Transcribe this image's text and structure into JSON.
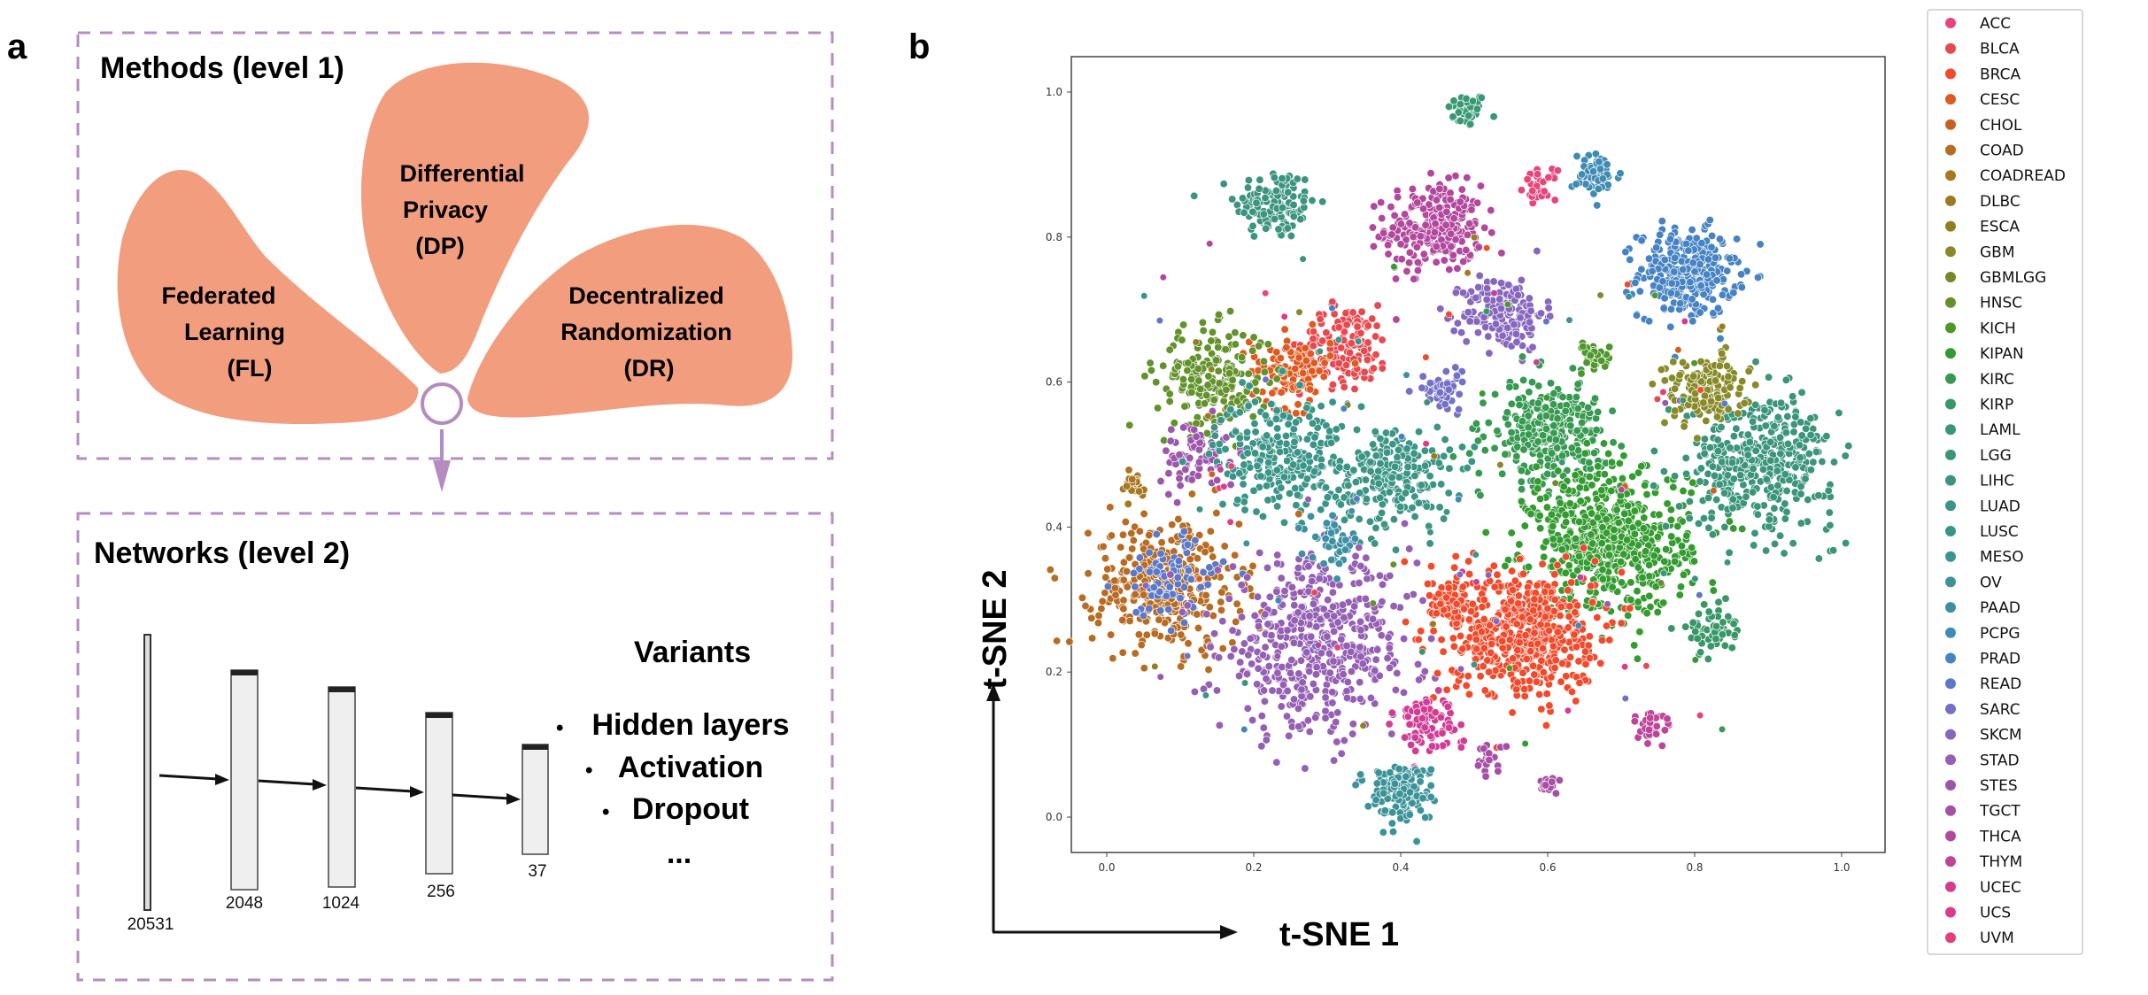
{
  "panel_a": {
    "label": "a",
    "level1_title": "Methods (level 1)",
    "petals": [
      {
        "lines": [
          "Federated",
          "Learning",
          "(FL)"
        ]
      },
      {
        "lines": [
          "Differential",
          "Privacy",
          "(DP)"
        ]
      },
      {
        "lines": [
          "Decentralized",
          "Randomization",
          "(DR)"
        ]
      }
    ],
    "petal_color": "#f29d7e",
    "accent_color": "#b48cc0",
    "level2_title": "Networks (level 2)",
    "layers": [
      "20531",
      "2048",
      "1024",
      "256",
      "37"
    ],
    "variants_title": "Variants",
    "variants": [
      "Hidden layers",
      "Activation",
      "Dropout"
    ],
    "bullet": "•",
    "ellipsis": "..."
  },
  "panel_b": {
    "label": "b",
    "xlabel": "t-SNE 1",
    "ylabel": "t-SNE 2"
  },
  "chart_data": {
    "type": "scatter",
    "xlim": [
      -0.05,
      1.02
    ],
    "ylim": [
      -0.05,
      1.05
    ],
    "xticks": [
      "0.0",
      "0.2",
      "0.4",
      "0.6",
      "0.8",
      "1.0"
    ],
    "yticks": [
      "0.0",
      "0.2",
      "0.4",
      "0.6",
      "0.8",
      "1.0"
    ],
    "grid": false,
    "legend_position": "right-outside",
    "legend": [
      {
        "name": "ACC",
        "color": "#e8457a"
      },
      {
        "name": "BLCA",
        "color": "#e8494f"
      },
      {
        "name": "BRCA",
        "color": "#f24a2b"
      },
      {
        "name": "CESC",
        "color": "#e05a1e"
      },
      {
        "name": "CHOL",
        "color": "#c8611f"
      },
      {
        "name": "COAD",
        "color": "#b86c22"
      },
      {
        "name": "COADREAD",
        "color": "#a9771f"
      },
      {
        "name": "DLBC",
        "color": "#9c7a1e"
      },
      {
        "name": "ESCA",
        "color": "#8f7f1e"
      },
      {
        "name": "GBM",
        "color": "#878a27"
      },
      {
        "name": "GBMLGG",
        "color": "#75892a"
      },
      {
        "name": "HNSC",
        "color": "#62922a"
      },
      {
        "name": "KICH",
        "color": "#4e982b"
      },
      {
        "name": "KIPAN",
        "color": "#339c2e"
      },
      {
        "name": "KIRC",
        "color": "#369a50"
      },
      {
        "name": "KIRP",
        "color": "#379866"
      },
      {
        "name": "LAML",
        "color": "#389873"
      },
      {
        "name": "LGG",
        "color": "#3a9579"
      },
      {
        "name": "LIHC",
        "color": "#3b947f"
      },
      {
        "name": "LUAD",
        "color": "#3a9584"
      },
      {
        "name": "LUSC",
        "color": "#3a9588"
      },
      {
        "name": "MESO",
        "color": "#3a948f"
      },
      {
        "name": "OV",
        "color": "#3b9399"
      },
      {
        "name": "PAAD",
        "color": "#3d90a3"
      },
      {
        "name": "PCPG",
        "color": "#3e8bb5"
      },
      {
        "name": "PRAD",
        "color": "#4583c4"
      },
      {
        "name": "READ",
        "color": "#5c78c8"
      },
      {
        "name": "SARC",
        "color": "#7470c8"
      },
      {
        "name": "SKCM",
        "color": "#8766c0"
      },
      {
        "name": "STAD",
        "color": "#945fb5"
      },
      {
        "name": "STES",
        "color": "#9d56ac"
      },
      {
        "name": "TGCT",
        "color": "#a64fa6"
      },
      {
        "name": "THCA",
        "color": "#b3479d"
      },
      {
        "name": "THYM",
        "color": "#bf439a"
      },
      {
        "name": "UCEC",
        "color": "#d33c95"
      },
      {
        "name": "UCS",
        "color": "#de3a8b"
      },
      {
        "name": "UVM",
        "color": "#e63e7c"
      }
    ],
    "clusters": [
      {
        "class": "LAML",
        "x": 0.49,
        "y": 0.975,
        "sd": 0.012,
        "n": 45
      },
      {
        "class": "LIHC",
        "x": 0.23,
        "y": 0.845,
        "sd": 0.025,
        "n": 130
      },
      {
        "class": "THCA",
        "x": 0.445,
        "y": 0.812,
        "sd": 0.03,
        "n": 260
      },
      {
        "class": "ACC",
        "x": 0.59,
        "y": 0.872,
        "sd": 0.01,
        "n": 30
      },
      {
        "class": "PCPG",
        "x": 0.667,
        "y": 0.885,
        "sd": 0.015,
        "n": 60
      },
      {
        "class": "PRAD",
        "x": 0.79,
        "y": 0.75,
        "sd": 0.03,
        "n": 320
      },
      {
        "class": "SKCM",
        "x": 0.54,
        "y": 0.695,
        "sd": 0.025,
        "n": 180
      },
      {
        "class": "BLCA",
        "x": 0.325,
        "y": 0.65,
        "sd": 0.028,
        "n": 160
      },
      {
        "class": "CESC",
        "x": 0.25,
        "y": 0.615,
        "sd": 0.025,
        "n": 110
      },
      {
        "class": "HNSC",
        "x": 0.145,
        "y": 0.605,
        "sd": 0.035,
        "n": 220
      },
      {
        "class": "STES",
        "x": 0.128,
        "y": 0.5,
        "sd": 0.025,
        "n": 90
      },
      {
        "class": "LUSC",
        "x": 0.235,
        "y": 0.5,
        "sd": 0.04,
        "n": 260
      },
      {
        "class": "LUAD",
        "x": 0.39,
        "y": 0.47,
        "sd": 0.035,
        "n": 230
      },
      {
        "class": "COADREAD",
        "x": 0.035,
        "y": 0.455,
        "sd": 0.01,
        "n": 25
      },
      {
        "class": "COAD",
        "x": 0.082,
        "y": 0.32,
        "sd": 0.045,
        "n": 360
      },
      {
        "class": "READ",
        "x": 0.085,
        "y": 0.33,
        "sd": 0.03,
        "n": 80
      },
      {
        "class": "STAD",
        "x": 0.285,
        "y": 0.235,
        "sd": 0.06,
        "n": 520
      },
      {
        "class": "PAAD",
        "x": 0.31,
        "y": 0.38,
        "sd": 0.015,
        "n": 45
      },
      {
        "class": "KIRC",
        "x": 0.6,
        "y": 0.53,
        "sd": 0.035,
        "n": 320
      },
      {
        "class": "KIPAN",
        "x": 0.685,
        "y": 0.38,
        "sd": 0.05,
        "n": 620
      },
      {
        "class": "LGG",
        "x": 0.89,
        "y": 0.49,
        "sd": 0.045,
        "n": 420
      },
      {
        "class": "GBM",
        "x": 0.815,
        "y": 0.59,
        "sd": 0.025,
        "n": 150
      },
      {
        "class": "KICH",
        "x": 0.665,
        "y": 0.635,
        "sd": 0.01,
        "n": 40
      },
      {
        "class": "KIRP",
        "x": 0.82,
        "y": 0.26,
        "sd": 0.015,
        "n": 60
      },
      {
        "class": "BRCA",
        "x": 0.565,
        "y": 0.255,
        "sd": 0.045,
        "n": 560
      },
      {
        "class": "BRCA",
        "x": 0.47,
        "y": 0.3,
        "sd": 0.015,
        "n": 60
      },
      {
        "class": "UCEC",
        "x": 0.435,
        "y": 0.13,
        "sd": 0.02,
        "n": 85
      },
      {
        "class": "OV",
        "x": 0.4,
        "y": 0.035,
        "sd": 0.02,
        "n": 150
      },
      {
        "class": "TGCT",
        "x": 0.52,
        "y": 0.08,
        "sd": 0.01,
        "n": 25
      },
      {
        "class": "TGCT",
        "x": 0.6,
        "y": 0.045,
        "sd": 0.007,
        "n": 20
      },
      {
        "class": "THYM",
        "x": 0.74,
        "y": 0.125,
        "sd": 0.012,
        "n": 30
      },
      {
        "class": "SARC",
        "x": 0.46,
        "y": 0.59,
        "sd": 0.015,
        "n": 50
      }
    ]
  }
}
